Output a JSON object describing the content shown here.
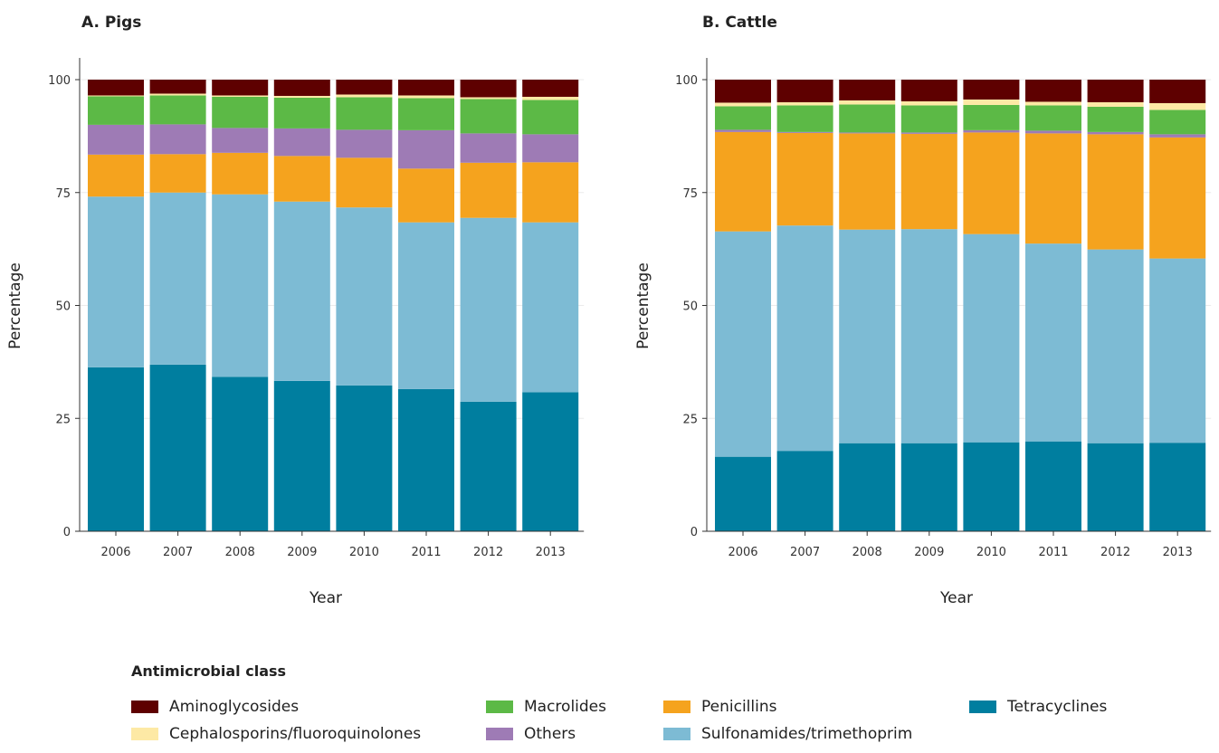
{
  "chart_data": [
    {
      "type": "bar",
      "stacked": true,
      "title": "A. Pigs",
      "xlabel": "Year",
      "ylabel": "Percentage",
      "ylim": [
        0,
        100
      ],
      "yticks": [
        0,
        25,
        50,
        75,
        100
      ],
      "categories": [
        "2006",
        "2007",
        "2008",
        "2009",
        "2010",
        "2011",
        "2012",
        "2013"
      ],
      "series": [
        {
          "name": "Tetracyclines",
          "values": [
            36.3,
            36.9,
            34.2,
            33.3,
            32.3,
            31.5,
            28.7,
            30.8
          ]
        },
        {
          "name": "Sulfonamides/trimethoprim",
          "values": [
            37.8,
            38.1,
            40.4,
            39.7,
            39.4,
            36.9,
            40.7,
            37.6
          ]
        },
        {
          "name": "Penicillins",
          "values": [
            9.3,
            8.5,
            9.2,
            10.1,
            11.0,
            11.9,
            12.2,
            13.3
          ]
        },
        {
          "name": "Others",
          "values": [
            6.6,
            6.6,
            5.5,
            6.1,
            6.2,
            8.5,
            6.5,
            6.2
          ]
        },
        {
          "name": "Macrolides",
          "values": [
            6.3,
            6.4,
            6.9,
            6.8,
            7.2,
            7.1,
            7.6,
            7.6
          ]
        },
        {
          "name": "Cephalosporins/fluoroquinolones",
          "values": [
            0.2,
            0.4,
            0.3,
            0.4,
            0.6,
            0.6,
            0.4,
            0.7
          ]
        },
        {
          "name": "Aminoglycosides",
          "values": [
            3.5,
            3.1,
            3.5,
            3.6,
            3.3,
            3.5,
            3.9,
            3.8
          ]
        }
      ]
    },
    {
      "type": "bar",
      "stacked": true,
      "title": "B. Cattle",
      "xlabel": "Year",
      "ylabel": "Percentage",
      "ylim": [
        0,
        100
      ],
      "yticks": [
        0,
        25,
        50,
        75,
        100
      ],
      "categories": [
        "2006",
        "2007",
        "2008",
        "2009",
        "2010",
        "2011",
        "2012",
        "2013"
      ],
      "series": [
        {
          "name": "Tetracyclines",
          "values": [
            16.5,
            17.8,
            19.5,
            19.5,
            19.7,
            19.9,
            19.5,
            19.6
          ]
        },
        {
          "name": "Sulfonamides/trimethoprim",
          "values": [
            49.9,
            49.9,
            47.3,
            47.4,
            46.1,
            43.8,
            42.9,
            40.8
          ]
        },
        {
          "name": "Penicillins",
          "values": [
            22.0,
            20.5,
            21.3,
            21.1,
            22.5,
            24.4,
            25.5,
            26.8
          ]
        },
        {
          "name": "Others",
          "values": [
            0.5,
            0.2,
            0.2,
            0.3,
            0.5,
            0.6,
            0.5,
            0.7
          ]
        },
        {
          "name": "Macrolides",
          "values": [
            5.2,
            5.9,
            6.2,
            6.0,
            5.6,
            5.6,
            5.6,
            5.4
          ]
        },
        {
          "name": "Cephalosporins/fluoroquinolones",
          "values": [
            0.8,
            0.7,
            0.9,
            0.9,
            1.2,
            0.8,
            1.0,
            1.5
          ]
        },
        {
          "name": "Aminoglycosides",
          "values": [
            5.1,
            5.0,
            4.6,
            4.8,
            4.4,
            4.9,
            5.0,
            5.2
          ]
        }
      ]
    }
  ],
  "legend": {
    "title": "Antimicrobial class",
    "items": [
      {
        "label": "Aminoglycosides",
        "color": "#5e0000"
      },
      {
        "label": "Macrolides",
        "color": "#5cb946"
      },
      {
        "label": "Penicillins",
        "color": "#f5a31e"
      },
      {
        "label": "Tetracyclines",
        "color": "#007e9f"
      },
      {
        "label": "Cephalosporins/fluoroquinolones",
        "color": "#fde9a5"
      },
      {
        "label": "Others",
        "color": "#9e7bb5"
      },
      {
        "label": "Sulfonamides/trimethoprim",
        "color": "#7dbbd4"
      }
    ]
  },
  "colors": {
    "Tetracyclines": "#007e9f",
    "Sulfonamides/trimethoprim": "#7dbbd4",
    "Penicillins": "#f5a31e",
    "Others": "#9e7bb5",
    "Macrolides": "#5cb946",
    "Cephalosporins/fluoroquinolones": "#fde9a5",
    "Aminoglycosides": "#5e0000"
  }
}
